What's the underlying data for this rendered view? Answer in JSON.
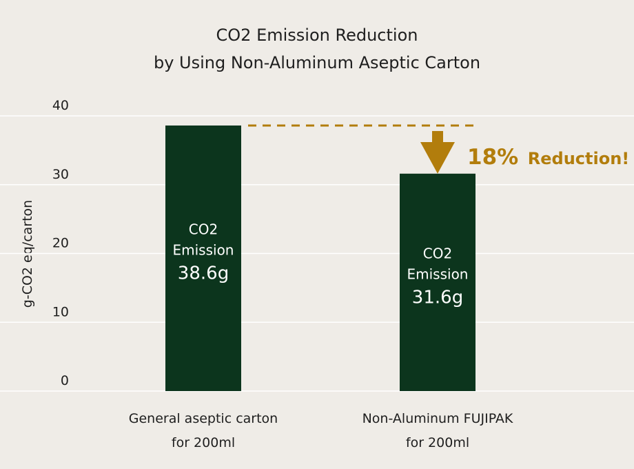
{
  "chart_data": {
    "type": "bar",
    "title_lines": [
      "CO2 Emission Reduction",
      "by Using Non-Aluminum Aseptic Carton"
    ],
    "ylabel": "g-CO2 eq/carton",
    "ylim": [
      0,
      40
    ],
    "yticks": [
      "0",
      "10",
      "20",
      "30",
      "40"
    ],
    "grid": true,
    "categories": [
      [
        "General aseptic carton",
        "for 200ml"
      ],
      [
        "Non-Aluminum FUJIPAK",
        "for 200ml"
      ]
    ],
    "values": [
      38.6,
      31.6
    ],
    "bar_labels": [
      [
        "CO2",
        "Emission",
        "38.6g"
      ],
      [
        "CO2",
        "Emission",
        "31.6g"
      ]
    ],
    "annotation": {
      "percent": "18%",
      "text": "Reduction!"
    },
    "colors": {
      "background": "#efece7",
      "bar": "#0c351d",
      "accent": "#b27d0c",
      "grid": "#ffffff",
      "bar_text": "#ffffff"
    }
  }
}
